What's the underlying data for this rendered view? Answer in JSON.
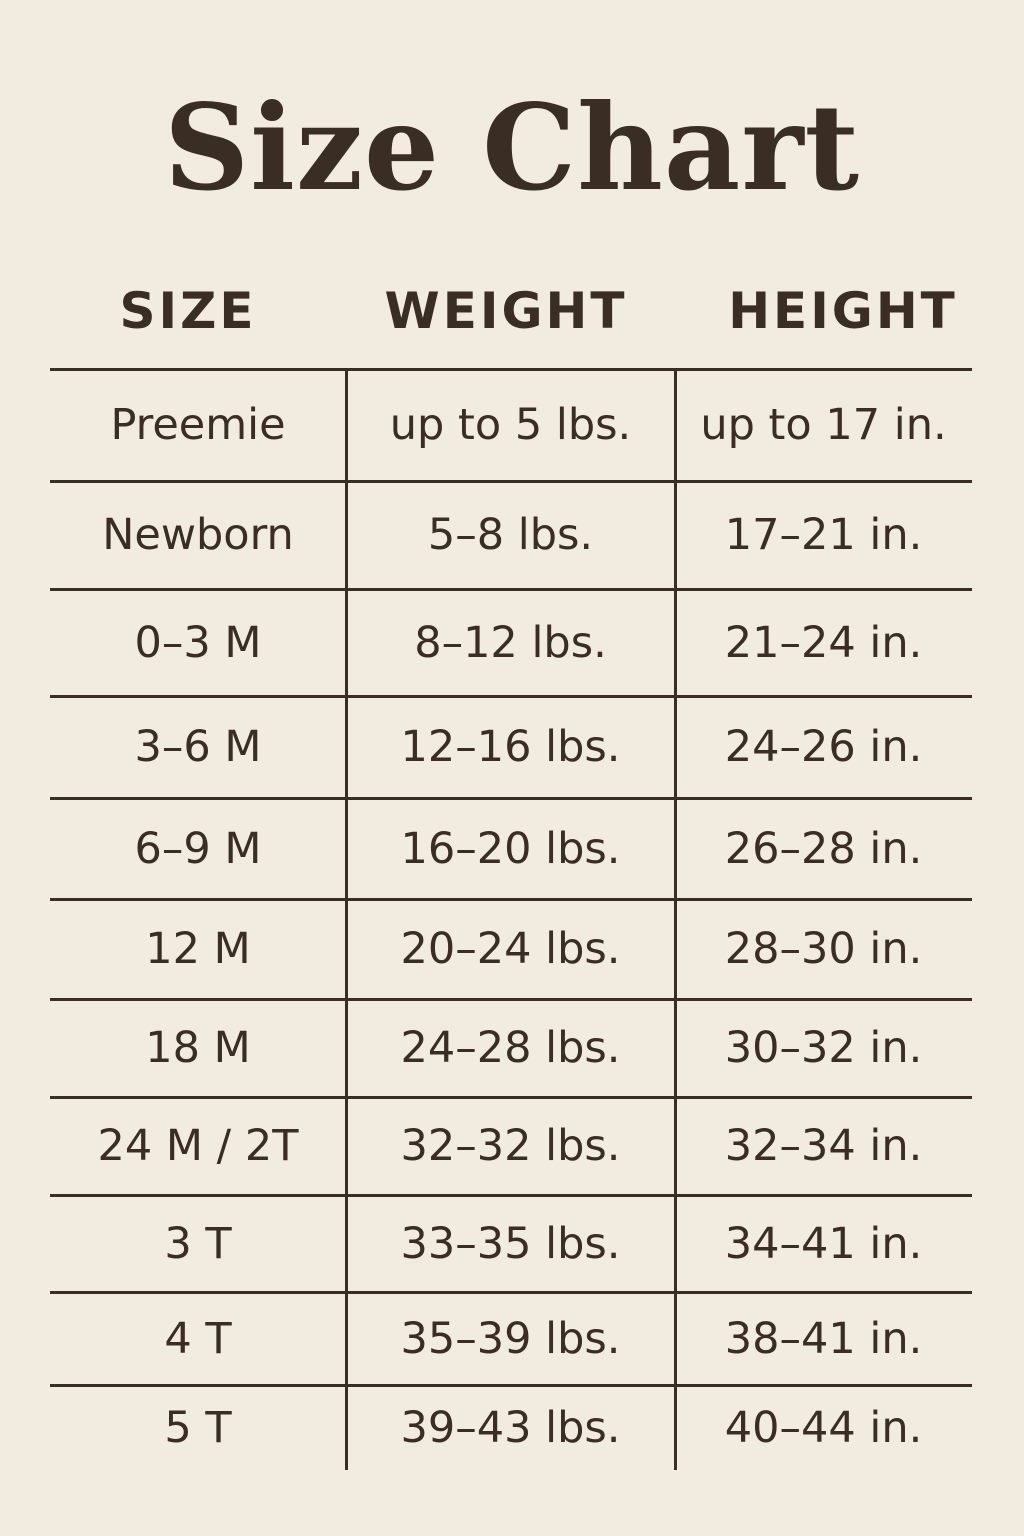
{
  "title": "Size Chart",
  "columns": [
    "SIZE",
    "WEIGHT",
    "HEIGHT"
  ],
  "rows": [
    [
      "Preemie",
      "up to 5 lbs.",
      "up to 17 in."
    ],
    [
      "Newborn",
      "5–8 lbs.",
      "17–21 in."
    ],
    [
      "0–3 M",
      "8–12 lbs.",
      "21–24 in."
    ],
    [
      "3–6 M",
      "12–16 lbs.",
      "24–26 in."
    ],
    [
      "6–9 M",
      "16–20 lbs.",
      "26–28 in."
    ],
    [
      "12 M",
      "20–24 lbs.",
      "28–30 in."
    ],
    [
      "18 M",
      "24–28 lbs.",
      "30–32 in."
    ],
    [
      "24 M / 2T",
      "32–32 lbs.",
      "32–34 in."
    ],
    [
      "3 T",
      "33–35 lbs.",
      "34–41 in."
    ],
    [
      "4 T",
      "35–39 lbs.",
      "38–41 in."
    ],
    [
      "5 T",
      "39–43 lbs.",
      "40–44 in."
    ]
  ],
  "colors": {
    "background": "#f2ebe0",
    "text": "#3a2d23"
  }
}
